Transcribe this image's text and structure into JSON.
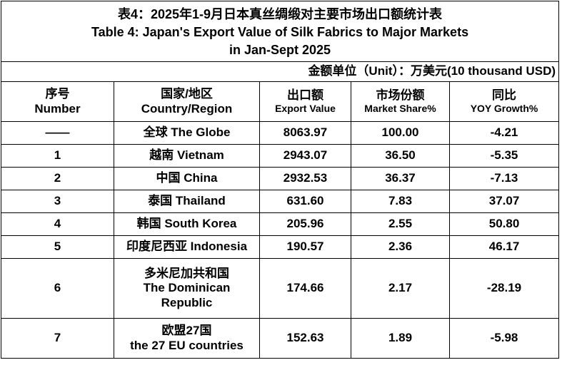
{
  "table": {
    "title_cn": "表4：2025年1-9月日本真丝绸缎对主要市场出口额统计表",
    "title_en_line1": "Table 4: Japan's Export Value of Silk Fabrics to Major Markets",
    "title_en_line2": "in Jan-Sept 2025",
    "unit_note": "金额单位（Unit）：万美元(10 thousand USD)",
    "headers": {
      "number_cn": "序号",
      "number_en": "Number",
      "country_cn": "国家/地区",
      "country_en": "Country/Region",
      "value_cn": "出口额",
      "value_en": "Export Value",
      "share_cn": "市场份额",
      "share_en": "Market Share%",
      "yoy_cn": "同比",
      "yoy_en": "YOY Growth%"
    },
    "rows": [
      {
        "number": "——",
        "country_line1": "全球 The Globe",
        "country_line2": "",
        "country_line3": "",
        "value": "8063.97",
        "share": "100.00",
        "yoy": "-4.21"
      },
      {
        "number": "1",
        "country_line1": "越南 Vietnam",
        "country_line2": "",
        "country_line3": "",
        "value": "2943.07",
        "share": "36.50",
        "yoy": "-5.35"
      },
      {
        "number": "2",
        "country_line1": "中国 China",
        "country_line2": "",
        "country_line3": "",
        "value": "2932.53",
        "share": "36.37",
        "yoy": "-7.13"
      },
      {
        "number": "3",
        "country_line1": "泰国 Thailand",
        "country_line2": "",
        "country_line3": "",
        "value": "631.60",
        "share": "7.83",
        "yoy": "37.07"
      },
      {
        "number": "4",
        "country_line1": "韩国 South Korea",
        "country_line2": "",
        "country_line3": "",
        "value": "205.96",
        "share": "2.55",
        "yoy": "50.80"
      },
      {
        "number": "5",
        "country_line1": "印度尼西亚 Indonesia",
        "country_line2": "",
        "country_line3": "",
        "value": "190.57",
        "share": "2.36",
        "yoy": "46.17"
      },
      {
        "number": "6",
        "country_line1": "多米尼加共和国",
        "country_line2": "The Dominican",
        "country_line3": "Republic",
        "value": "174.66",
        "share": "2.17",
        "yoy": "-28.19"
      },
      {
        "number": "7",
        "country_line1": "欧盟27国",
        "country_line2": "the 27 EU countries",
        "country_line3": "",
        "value": "152.63",
        "share": "1.89",
        "yoy": "-5.98"
      }
    ]
  }
}
